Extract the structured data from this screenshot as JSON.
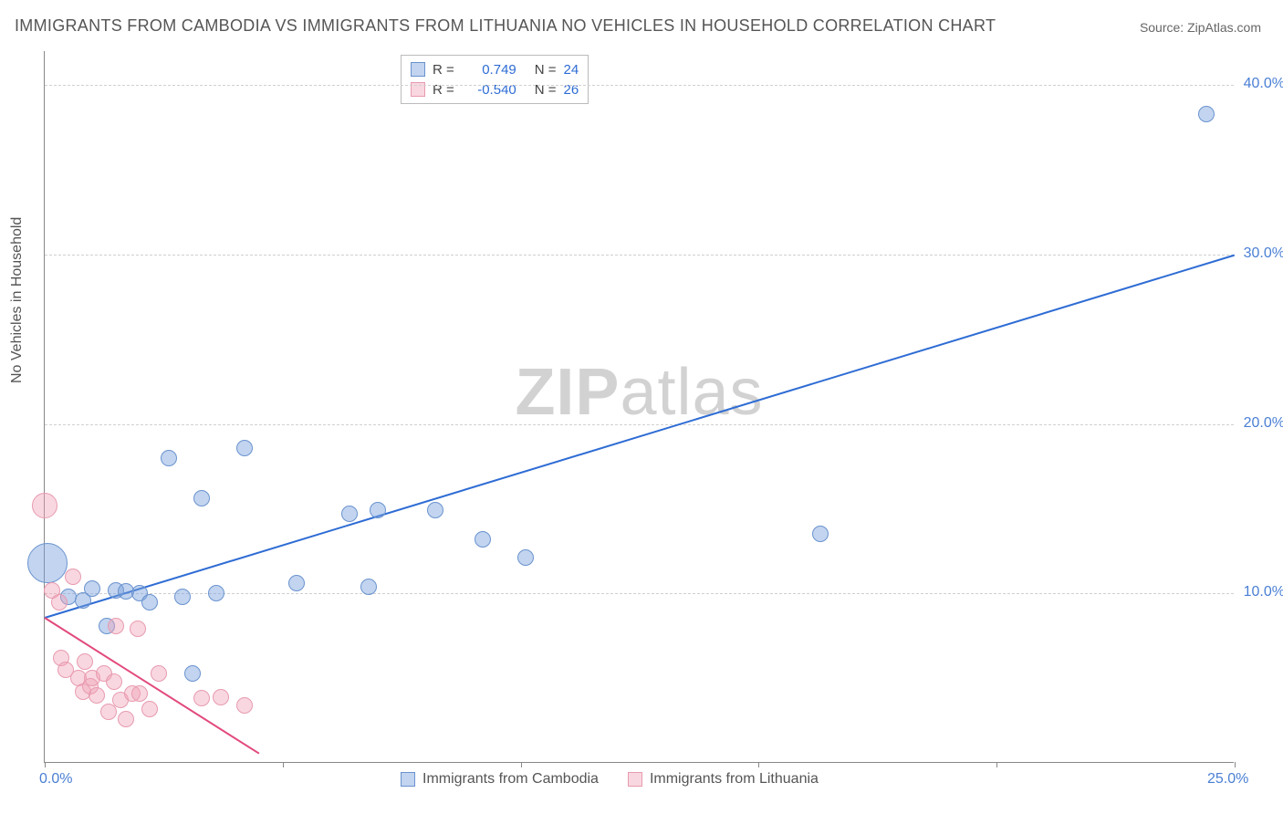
{
  "title": "IMMIGRANTS FROM CAMBODIA VS IMMIGRANTS FROM LITHUANIA NO VEHICLES IN HOUSEHOLD CORRELATION CHART",
  "source_prefix": "Source: ",
  "source_name": "ZipAtlas.com",
  "ylabel": "No Vehicles in Household",
  "watermark_bold": "ZIP",
  "watermark_rest": "atlas",
  "chart": {
    "type": "scatter",
    "xlim": [
      0,
      25
    ],
    "ylim": [
      0,
      42
    ],
    "x_ticks": [
      0,
      5,
      10,
      15,
      20,
      25
    ],
    "y_ticks": [
      10,
      20,
      30,
      40
    ],
    "x_tick_labels": [
      "0.0%",
      "",
      "",
      "",
      "",
      "25.0%"
    ],
    "y_tick_labels": [
      "10.0%",
      "20.0%",
      "30.0%",
      "40.0%"
    ],
    "grid_color": "#d0d0d0",
    "axis_color": "#888888",
    "background": "#ffffff",
    "series": [
      {
        "name": "Immigrants from Cambodia",
        "marker_fill": "rgba(120,160,220,0.45)",
        "marker_stroke": "#6a93cf",
        "marker_radius": 9,
        "trend_color": "#2e6cd4",
        "trend": {
          "x1": 0.0,
          "y1": 8.6,
          "x2": 25.0,
          "y2": 30.0
        },
        "points": [
          {
            "x": 0.05,
            "y": 11.8,
            "r": 22
          },
          {
            "x": 0.5,
            "y": 9.8
          },
          {
            "x": 0.8,
            "y": 9.6
          },
          {
            "x": 1.0,
            "y": 10.3
          },
          {
            "x": 1.3,
            "y": 8.1
          },
          {
            "x": 1.5,
            "y": 10.2
          },
          {
            "x": 1.7,
            "y": 10.1
          },
          {
            "x": 2.0,
            "y": 10.0
          },
          {
            "x": 2.2,
            "y": 9.5
          },
          {
            "x": 2.6,
            "y": 18.0
          },
          {
            "x": 2.9,
            "y": 9.8
          },
          {
            "x": 3.3,
            "y": 15.6
          },
          {
            "x": 3.1,
            "y": 5.3
          },
          {
            "x": 3.6,
            "y": 10.0
          },
          {
            "x": 4.2,
            "y": 18.6
          },
          {
            "x": 5.3,
            "y": 10.6
          },
          {
            "x": 6.4,
            "y": 14.7
          },
          {
            "x": 6.8,
            "y": 10.4
          },
          {
            "x": 7.0,
            "y": 14.9
          },
          {
            "x": 8.2,
            "y": 14.9
          },
          {
            "x": 9.2,
            "y": 13.2
          },
          {
            "x": 10.1,
            "y": 12.1
          },
          {
            "x": 16.3,
            "y": 13.5
          },
          {
            "x": 24.4,
            "y": 38.3
          }
        ]
      },
      {
        "name": "Immigrants from Lithuania",
        "marker_fill": "rgba(240,160,180,0.42)",
        "marker_stroke": "#e79bb0",
        "marker_radius": 9,
        "trend_color": "#e24a7b",
        "trend": {
          "x1": 0.0,
          "y1": 8.6,
          "x2": 4.5,
          "y2": 0.6
        },
        "points": [
          {
            "x": 0.0,
            "y": 15.2,
            "r": 14
          },
          {
            "x": 0.15,
            "y": 10.2
          },
          {
            "x": 0.3,
            "y": 9.5
          },
          {
            "x": 0.35,
            "y": 6.2
          },
          {
            "x": 0.45,
            "y": 5.5
          },
          {
            "x": 0.6,
            "y": 11.0
          },
          {
            "x": 0.7,
            "y": 5.0
          },
          {
            "x": 0.8,
            "y": 4.2
          },
          {
            "x": 0.85,
            "y": 6.0
          },
          {
            "x": 0.95,
            "y": 4.5
          },
          {
            "x": 1.0,
            "y": 5.0
          },
          {
            "x": 1.1,
            "y": 4.0
          },
          {
            "x": 1.25,
            "y": 5.3
          },
          {
            "x": 1.35,
            "y": 3.0
          },
          {
            "x": 1.45,
            "y": 4.8
          },
          {
            "x": 1.5,
            "y": 8.1
          },
          {
            "x": 1.6,
            "y": 3.7
          },
          {
            "x": 1.7,
            "y": 2.6
          },
          {
            "x": 1.85,
            "y": 4.1
          },
          {
            "x": 1.95,
            "y": 7.9
          },
          {
            "x": 2.0,
            "y": 4.1
          },
          {
            "x": 2.2,
            "y": 3.2
          },
          {
            "x": 2.4,
            "y": 5.3
          },
          {
            "x": 3.3,
            "y": 3.8
          },
          {
            "x": 3.7,
            "y": 3.9
          },
          {
            "x": 4.2,
            "y": 3.4
          }
        ]
      }
    ]
  },
  "legend_top": {
    "rows": [
      {
        "swatch_fill": "rgba(120,160,220,0.45)",
        "swatch_stroke": "#6a93cf",
        "r_label": "R =",
        "r_val": "0.749",
        "n_label": "N =",
        "n_val": "24"
      },
      {
        "swatch_fill": "rgba(240,160,180,0.42)",
        "swatch_stroke": "#e79bb0",
        "r_label": "R =",
        "r_val": "-0.540",
        "n_label": "N =",
        "n_val": "26"
      }
    ]
  },
  "legend_bottom": [
    {
      "swatch_fill": "rgba(120,160,220,0.45)",
      "swatch_stroke": "#6a93cf",
      "label": "Immigrants from Cambodia"
    },
    {
      "swatch_fill": "rgba(240,160,180,0.42)",
      "swatch_stroke": "#e79bb0",
      "label": "Immigrants from Lithuania"
    }
  ]
}
